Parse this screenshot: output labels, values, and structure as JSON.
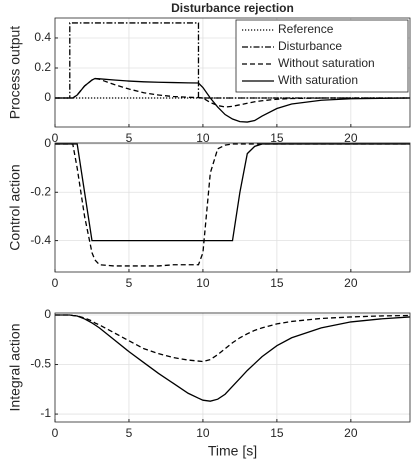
{
  "chart_data": [
    {
      "type": "line",
      "title": "Disturbance rejection",
      "ylabel": "Process output",
      "grid": true,
      "legend": "upper right",
      "x": [
        0,
        1,
        1.2,
        1.5,
        2,
        2.5,
        2.7,
        3,
        4,
        5,
        6,
        7,
        8,
        9,
        9.7,
        10,
        10.5,
        11,
        11.5,
        12,
        12.5,
        13,
        13.5,
        14,
        15,
        16,
        18,
        20,
        22,
        24
      ],
      "xlim": [
        0,
        24
      ],
      "xticks": [
        0,
        5,
        10,
        15,
        20
      ],
      "ylim": [
        -0.193,
        0.533
      ],
      "yticks": [
        0,
        0.2,
        0.4
      ],
      "series": [
        {
          "name": "Reference",
          "color": "#000000",
          "dash": "dotted",
          "values": [
            0,
            0,
            0,
            0,
            0,
            0,
            0,
            0,
            0,
            0,
            0,
            0,
            0,
            0,
            0,
            0,
            0,
            0,
            0,
            0,
            0,
            0,
            0,
            0,
            0,
            0,
            0,
            0,
            0,
            0
          ]
        },
        {
          "name": "Disturbance",
          "color": "#000000",
          "dash": "dashdot",
          "x": [
            0,
            1,
            1,
            9.7,
            9.7,
            24
          ],
          "values": [
            0,
            0,
            0.5,
            0.5,
            0,
            0
          ]
        },
        {
          "name": "Without saturation",
          "color": "#000000",
          "dash": "dashed",
          "values": [
            0,
            0,
            0,
            0.02,
            0.08,
            0.12,
            0.13,
            0.125,
            0.09,
            0.06,
            0.035,
            0.02,
            0.01,
            0.005,
            0.003,
            0,
            -0.03,
            -0.05,
            -0.06,
            -0.055,
            -0.045,
            -0.035,
            -0.025,
            -0.018,
            -0.008,
            -0.003,
            0,
            0,
            0,
            0
          ]
        },
        {
          "name": "With saturation",
          "color": "#000000",
          "dash": "solid",
          "values": [
            0,
            0,
            0,
            0.02,
            0.08,
            0.12,
            0.13,
            0.128,
            0.12,
            0.113,
            0.108,
            0.105,
            0.103,
            0.101,
            0.1,
            0.07,
            0,
            -0.06,
            -0.11,
            -0.14,
            -0.157,
            -0.16,
            -0.15,
            -0.12,
            -0.07,
            -0.04,
            -0.015,
            -0.005,
            -0.002,
            0
          ]
        }
      ]
    },
    {
      "type": "line",
      "ylabel": "Control action",
      "grid": true,
      "x": [
        0,
        1,
        1.2,
        1.5,
        2,
        2.5,
        2.7,
        3,
        4,
        5,
        6,
        7,
        8,
        9,
        9.7,
        10,
        10.5,
        11,
        11.5,
        12,
        12.5,
        13,
        13.5,
        14,
        15,
        16,
        18,
        20,
        22,
        24
      ],
      "xlim": [
        0,
        24
      ],
      "xticks": [
        0,
        5,
        10,
        15,
        20
      ],
      "ylim": [
        -0.53,
        0.004
      ],
      "yticks": [
        -0.4,
        -0.2,
        0
      ],
      "series": [
        {
          "color": "#000000",
          "dash": "dashed",
          "values": [
            0,
            0,
            0,
            -0.1,
            -0.3,
            -0.45,
            -0.48,
            -0.5,
            -0.505,
            -0.505,
            -0.505,
            -0.505,
            -0.5,
            -0.5,
            -0.5,
            -0.45,
            -0.12,
            -0.02,
            -0.005,
            0,
            0,
            0,
            0,
            0,
            0,
            0,
            0,
            0,
            0,
            0
          ]
        },
        {
          "color": "#000000",
          "dash": "solid",
          "values": [
            0,
            0,
            0,
            0,
            -0.2,
            -0.4,
            -0.4,
            -0.4,
            -0.4,
            -0.4,
            -0.4,
            -0.4,
            -0.4,
            -0.4,
            -0.4,
            -0.4,
            -0.4,
            -0.4,
            -0.4,
            -0.4,
            -0.2,
            -0.04,
            -0.01,
            0,
            0,
            0,
            0,
            0,
            0,
            0
          ]
        }
      ]
    },
    {
      "type": "line",
      "ylabel": "Integral action",
      "xlabel": "Time [s]",
      "grid": true,
      "x": [
        0,
        1,
        1.2,
        1.5,
        2,
        2.5,
        2.7,
        3,
        4,
        5,
        6,
        7,
        8,
        9,
        9.7,
        10,
        10.5,
        11,
        11.5,
        12,
        12.5,
        13,
        13.5,
        14,
        15,
        16,
        18,
        20,
        22,
        24
      ],
      "xlim": [
        0,
        24
      ],
      "xticks": [
        0,
        5,
        10,
        15,
        20
      ],
      "ylim": [
        -1.08,
        0.02
      ],
      "yticks": [
        -1,
        -0.5,
        0
      ],
      "series": [
        {
          "color": "#000000",
          "dash": "dashed",
          "values": [
            0,
            0,
            -0.005,
            -0.01,
            -0.03,
            -0.06,
            -0.08,
            -0.1,
            -0.18,
            -0.26,
            -0.34,
            -0.39,
            -0.43,
            -0.455,
            -0.465,
            -0.47,
            -0.45,
            -0.4,
            -0.34,
            -0.28,
            -0.23,
            -0.19,
            -0.155,
            -0.13,
            -0.09,
            -0.065,
            -0.035,
            -0.02,
            -0.01,
            -0.005
          ]
        },
        {
          "color": "#000000",
          "dash": "solid",
          "values": [
            0,
            0,
            -0.005,
            -0.01,
            -0.04,
            -0.08,
            -0.1,
            -0.13,
            -0.25,
            -0.37,
            -0.48,
            -0.59,
            -0.69,
            -0.79,
            -0.84,
            -0.86,
            -0.87,
            -0.85,
            -0.8,
            -0.72,
            -0.64,
            -0.56,
            -0.49,
            -0.42,
            -0.31,
            -0.23,
            -0.13,
            -0.07,
            -0.04,
            -0.02
          ]
        }
      ]
    }
  ]
}
